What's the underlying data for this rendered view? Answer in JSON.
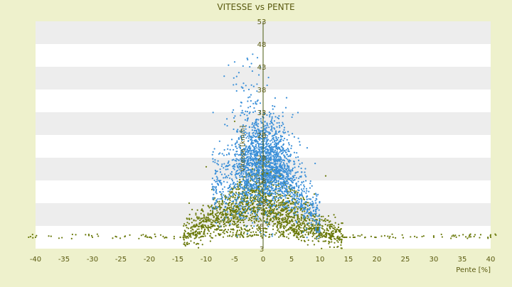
{
  "chart_data": {
    "type": "scatter",
    "title": "VITESSE vs PENTE",
    "xlabel": "Pente [%]",
    "ylabel": "Vitesse [km/h]",
    "xlim": [
      -40,
      40
    ],
    "ylim": [
      3,
      53
    ],
    "xticks": [
      -40,
      -35,
      -30,
      -25,
      -20,
      -15,
      -10,
      -5,
      0,
      5,
      10,
      15,
      20,
      25,
      30,
      35,
      40
    ],
    "yticks": [
      3,
      8,
      13,
      18,
      23,
      28,
      33,
      38,
      43,
      48,
      53
    ],
    "grid": "alternating horizontal bands",
    "legend": "none",
    "colors": {
      "background": "#eef1cc",
      "plot_band_light": "#ffffff",
      "plot_band_dark": "#ededed",
      "series_blue": "#3a8fd8",
      "series_olive": "#6b7a0c",
      "axis_text": "#5a5a10"
    },
    "series": [
      {
        "color": "#3a8fd8",
        "description_points": [
          [
            -3.0,
            30
          ],
          [
            -2.0,
            26
          ],
          [
            -1.5,
            22
          ],
          [
            -1.0,
            20
          ],
          [
            0.0,
            24
          ],
          [
            1.0,
            21
          ],
          [
            2.0,
            18
          ],
          [
            -4.0,
            25
          ],
          [
            3.0,
            15
          ],
          [
            0.5,
            28
          ],
          [
            -0.5,
            35
          ],
          [
            -2.5,
            38
          ],
          [
            -1.0,
            45
          ],
          [
            -0.5,
            43
          ],
          [
            4.0,
            34
          ],
          [
            5.0,
            12
          ],
          [
            -5.5,
            27
          ],
          [
            2.5,
            24
          ]
        ]
      },
      {
        "color": "#6b7a0c",
        "description_points": [
          [
            -13.0,
            13
          ],
          [
            -10.0,
            21
          ],
          [
            -9.0,
            16
          ],
          [
            -6.0,
            13
          ],
          [
            -5.0,
            31
          ],
          [
            -3.0,
            10
          ],
          [
            0.0,
            7
          ],
          [
            3.0,
            8
          ],
          [
            5.0,
            10
          ],
          [
            7.0,
            12
          ],
          [
            9.0,
            15
          ],
          [
            11.0,
            19
          ],
          [
            14.0,
            6
          ],
          [
            -18.0,
            6
          ],
          [
            -30.0,
            5.5
          ],
          [
            30.0,
            5.5
          ],
          [
            -40.0,
            5.5
          ],
          [
            40.0,
            5.5
          ]
        ]
      }
    ]
  }
}
